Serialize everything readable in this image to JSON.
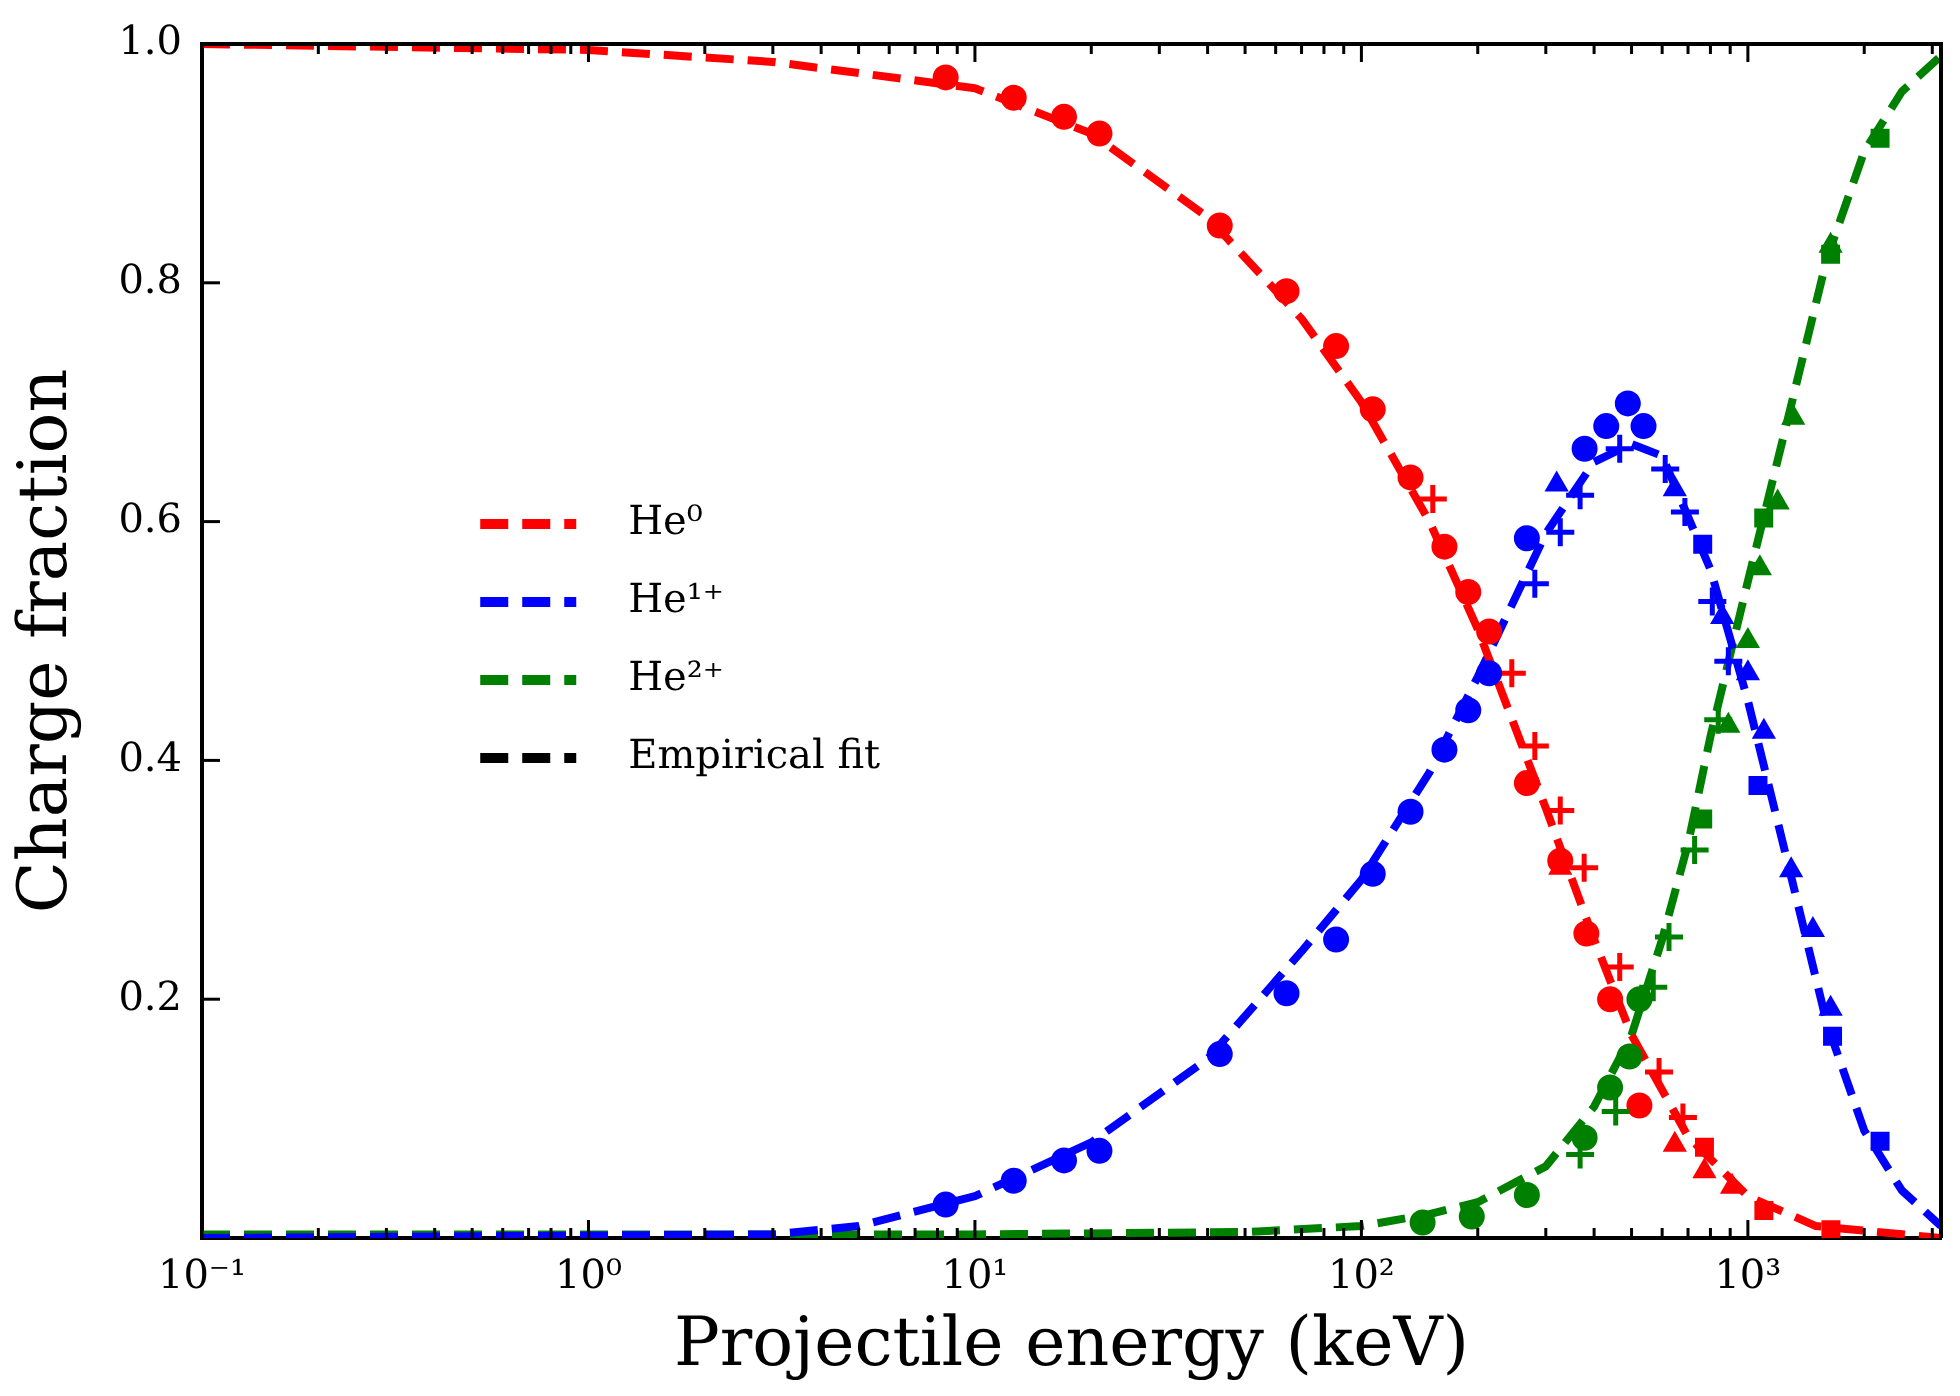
{
  "chart_data": {
    "type": "scatter",
    "xlabel": "Projectile energy (keV)",
    "ylabel": "Charge fraction",
    "log": "x",
    "xlim": [
      0.1,
      3160
    ],
    "ylim": [
      0,
      1
    ],
    "xticks": [
      {
        "value": 0.1,
        "label": "10⁻¹"
      },
      {
        "value": 0.2,
        "label": null
      },
      {
        "value": 0.3,
        "label": null
      },
      {
        "value": 0.4,
        "label": null
      },
      {
        "value": 0.5,
        "label": null
      },
      {
        "value": 0.6,
        "label": null
      },
      {
        "value": 0.7,
        "label": null
      },
      {
        "value": 0.8,
        "label": null
      },
      {
        "value": 0.9,
        "label": null
      },
      {
        "value": 1,
        "label": "10⁰"
      },
      {
        "value": 2,
        "label": null
      },
      {
        "value": 3,
        "label": null
      },
      {
        "value": 4,
        "label": null
      },
      {
        "value": 5,
        "label": null
      },
      {
        "value": 6,
        "label": null
      },
      {
        "value": 7,
        "label": null
      },
      {
        "value": 8,
        "label": null
      },
      {
        "value": 9,
        "label": null
      },
      {
        "value": 10,
        "label": "10¹"
      },
      {
        "value": 20,
        "label": null
      },
      {
        "value": 30,
        "label": null
      },
      {
        "value": 40,
        "label": null
      },
      {
        "value": 50,
        "label": null
      },
      {
        "value": 60,
        "label": null
      },
      {
        "value": 70,
        "label": null
      },
      {
        "value": 80,
        "label": null
      },
      {
        "value": 90,
        "label": null
      },
      {
        "value": 100,
        "label": "10²"
      },
      {
        "value": 200,
        "label": null
      },
      {
        "value": 300,
        "label": null
      },
      {
        "value": 400,
        "label": null
      },
      {
        "value": 500,
        "label": null
      },
      {
        "value": 600,
        "label": null
      },
      {
        "value": 700,
        "label": null
      },
      {
        "value": 800,
        "label": null
      },
      {
        "value": 900,
        "label": null
      },
      {
        "value": 1000,
        "label": "10³"
      },
      {
        "value": 2000,
        "label": null
      },
      {
        "value": 3000,
        "label": null
      }
    ],
    "yticks": [
      0.2,
      0.4,
      0.6,
      0.8,
      {
        "value": 1,
        "label": "1.0"
      }
    ],
    "grid": false,
    "legend": "center left",
    "series": [
      {
        "name": "He⁰",
        "type": "line",
        "color": "#ff0000",
        "line_style": "dashed",
        "marker": "none",
        "x": [
          0.1,
          1,
          3,
          10,
          20,
          40,
          70,
          100,
          150,
          200,
          300,
          400,
          500,
          700,
          1000,
          1500,
          3160
        ],
        "values": [
          1.0,
          0.995,
          0.985,
          0.963,
          0.925,
          0.855,
          0.77,
          0.7,
          0.6,
          0.51,
          0.36,
          0.25,
          0.17,
          0.085,
          0.035,
          0.01,
          0.0
        ]
      },
      {
        "name": "He¹⁺",
        "type": "line",
        "color": "#0000ff",
        "line_style": "dashed",
        "marker": "none",
        "x": [
          0.1,
          3,
          5,
          10,
          20,
          40,
          70,
          100,
          150,
          200,
          300,
          400,
          500,
          600,
          800,
          1000,
          1300,
          1600,
          2000,
          2500,
          3160
        ],
        "values": [
          0.0,
          0.003,
          0.01,
          0.035,
          0.08,
          0.15,
          0.24,
          0.3,
          0.39,
          0.47,
          0.59,
          0.65,
          0.665,
          0.655,
          0.56,
          0.45,
          0.3,
          0.18,
          0.09,
          0.04,
          0.01
        ]
      },
      {
        "name": "He²⁺",
        "type": "line",
        "color": "#008000",
        "line_style": "dashed",
        "marker": "none",
        "x": [
          0.1,
          10,
          50,
          100,
          150,
          200,
          300,
          400,
          500,
          600,
          700,
          800,
          1000,
          1300,
          1600,
          2000,
          2500,
          3160
        ],
        "values": [
          0.003,
          0.003,
          0.005,
          0.01,
          0.02,
          0.03,
          0.06,
          0.11,
          0.17,
          0.25,
          0.33,
          0.42,
          0.55,
          0.7,
          0.82,
          0.91,
          0.96,
          0.99
        ]
      },
      {
        "name": "Empirical fit",
        "type": "line",
        "color": "#000000",
        "line_style": "dashed",
        "marker": "none"
      },
      {
        "color": "#ff0000",
        "marker": "circle",
        "x": [
          8.4,
          12.6,
          17,
          21,
          43,
          64,
          86,
          107,
          134,
          164,
          189,
          214,
          268,
          327,
          382,
          440,
          524
        ],
        "values": [
          0.972,
          0.955,
          0.939,
          0.925,
          0.848,
          0.793,
          0.747,
          0.694,
          0.637,
          0.579,
          0.541,
          0.508,
          0.381,
          0.316,
          0.255,
          0.2,
          0.111
        ]
      },
      {
        "color": "#ff0000",
        "marker": "cross",
        "x": [
          153,
          245,
          281,
          327,
          377,
          466,
          589,
          679
        ],
        "values": [
          0.619,
          0.473,
          0.412,
          0.358,
          0.31,
          0.227,
          0.139,
          0.101
        ]
      },
      {
        "color": "#ff0000",
        "marker": "triangle",
        "x": [
          327,
          647,
          772,
          910
        ],
        "values": [
          0.31,
          0.078,
          0.056,
          0.043
        ]
      },
      {
        "color": "#ff0000",
        "marker": "square",
        "x": [
          772,
          1100,
          1640
        ],
        "values": [
          0.076,
          0.023,
          0.007
        ]
      },
      {
        "color": "#0000ff",
        "marker": "circle",
        "x": [
          8.4,
          12.6,
          17,
          21,
          43,
          64,
          86,
          107,
          134,
          164,
          189,
          214,
          268,
          378,
          430,
          489,
          537
        ],
        "values": [
          0.028,
          0.048,
          0.065,
          0.073,
          0.154,
          0.205,
          0.25,
          0.305,
          0.357,
          0.409,
          0.442,
          0.473,
          0.586,
          0.661,
          0.68,
          0.699,
          0.68
        ]
      },
      {
        "color": "#0000ff",
        "marker": "cross",
        "x": [
          281,
          327,
          368,
          466,
          611,
          687,
          809,
          890
        ],
        "values": [
          0.548,
          0.591,
          0.622,
          0.661,
          0.644,
          0.608,
          0.533,
          0.483
        ]
      },
      {
        "color": "#0000ff",
        "marker": "triangle",
        "x": [
          320,
          647,
          858,
          1000,
          1100,
          1294,
          1473,
          1637
        ],
        "values": [
          0.631,
          0.627,
          0.52,
          0.473,
          0.424,
          0.308,
          0.258,
          0.192
        ]
      },
      {
        "color": "#0000ff",
        "marker": "square",
        "x": [
          764,
          1062,
          1656,
          2198
        ],
        "values": [
          0.581,
          0.379,
          0.169,
          0.081
        ]
      },
      {
        "color": "#008000",
        "marker": "circle",
        "x": [
          144,
          193,
          268,
          378,
          440,
          494,
          524
        ],
        "values": [
          0.013,
          0.018,
          0.036,
          0.084,
          0.126,
          0.152,
          0.2
        ]
      },
      {
        "color": "#008000",
        "marker": "cross",
        "x": [
          368,
          455,
          569,
          625,
          728,
          838
        ],
        "values": [
          0.07,
          0.106,
          0.21,
          0.252,
          0.325,
          0.434
        ]
      },
      {
        "color": "#008000",
        "marker": "triangle",
        "x": [
          890,
          1000,
          1074,
          1194,
          1310,
          1637
        ],
        "values": [
          0.429,
          0.5,
          0.561,
          0.616,
          0.687,
          0.831
        ]
      },
      {
        "color": "#008000",
        "marker": "square",
        "x": [
          764,
          1099,
          1637,
          2198
        ],
        "values": [
          0.351,
          0.603,
          0.824,
          0.921
        ]
      }
    ]
  }
}
